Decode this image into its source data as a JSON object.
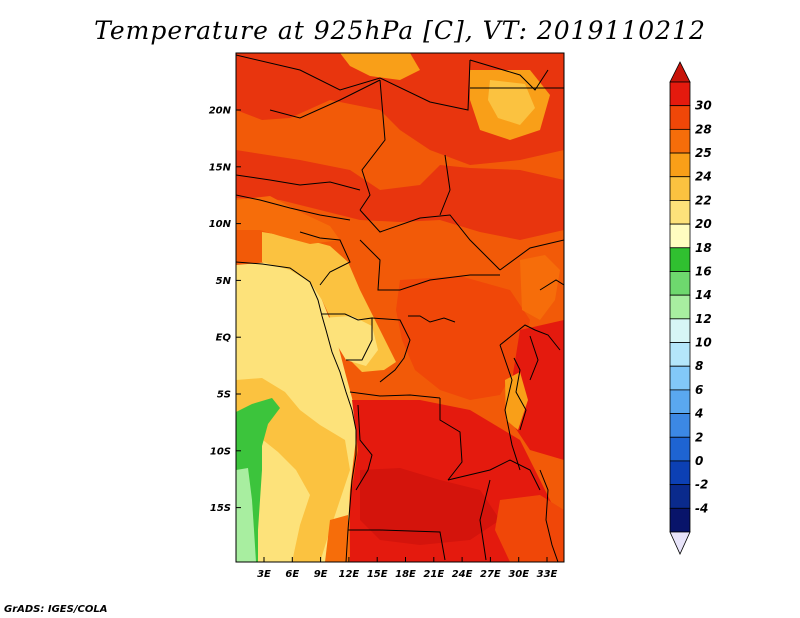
{
  "title": "Temperature at 925hPa [C], VT: 2019110212",
  "footer": "GrADS: IGES/COLA",
  "map": {
    "lat_labels": [
      "20N",
      "15N",
      "10N",
      "5N",
      "EQ",
      "5S",
      "10S",
      "15S"
    ],
    "lon_labels": [
      "3E",
      "6E",
      "9E",
      "12E",
      "15E",
      "18E",
      "21E",
      "24E",
      "27E",
      "30E",
      "33E"
    ]
  },
  "colorbar": {
    "labels": [
      "30",
      "28",
      "25",
      "24",
      "22",
      "20",
      "18",
      "16",
      "14",
      "12",
      "10",
      "8",
      "6",
      "4",
      "2",
      "0",
      "-2",
      "-4"
    ],
    "colors": [
      "#e41a0e",
      "#f04708",
      "#f66d0a",
      "#f99f18",
      "#fbc240",
      "#fde27a",
      "#fffdc0",
      "#30c030",
      "#6ed86e",
      "#a8eea0",
      "#d6f6f6",
      "#b4e6fa",
      "#82c8f8",
      "#5aa8f0",
      "#3c88e4",
      "#1e64d2",
      "#0c40b4",
      "#0a2a8c",
      "#08146a"
    ],
    "top_cap_color": "#c8140a",
    "bottom_cap_color": "#e8e4fa"
  }
}
